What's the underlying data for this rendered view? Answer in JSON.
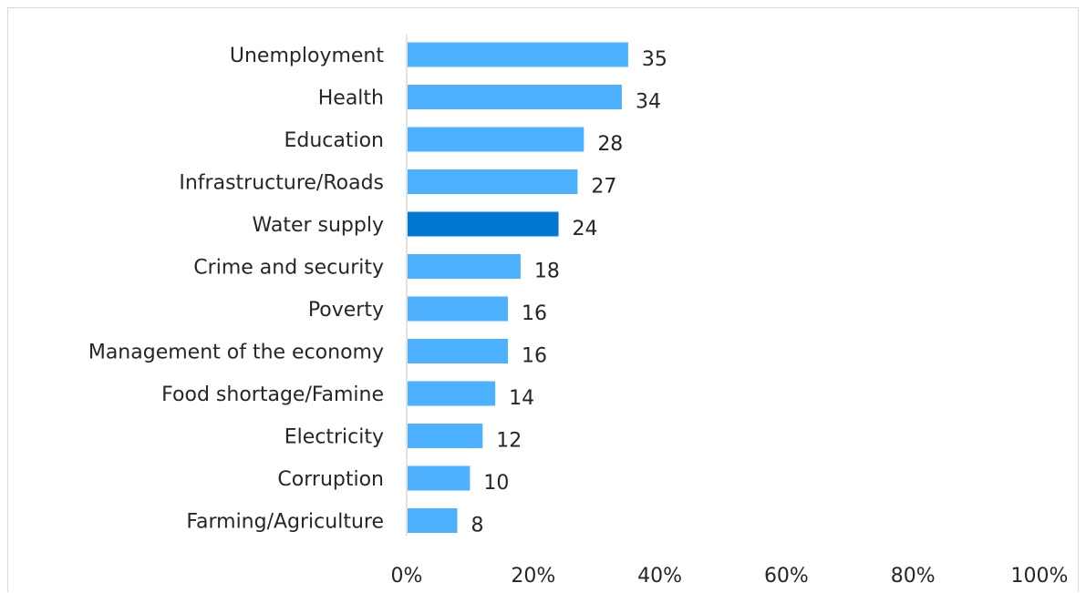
{
  "chart_data": {
    "type": "bar",
    "orientation": "horizontal",
    "categories": [
      "Unemployment",
      "Health",
      "Education",
      "Infrastructure/Roads",
      "Water supply",
      "Crime and security",
      "Poverty",
      "Management of the economy",
      "Food shortage/Famine",
      "Electricity",
      "Corruption",
      "Farming/Agriculture"
    ],
    "values": [
      35,
      34,
      28,
      27,
      24,
      18,
      16,
      16,
      14,
      12,
      10,
      8
    ],
    "value_labels": [
      "35",
      "34",
      "28",
      "27",
      "24",
      "18",
      "16",
      "16",
      "14",
      "12",
      "10",
      "8"
    ],
    "highlight_index": 4,
    "xlim": [
      0,
      100
    ],
    "xticks": [
      0,
      20,
      40,
      60,
      80,
      100
    ],
    "xtick_labels": [
      "0%",
      "20%",
      "40%",
      "60%",
      "80%",
      "100%"
    ],
    "title": "",
    "xlabel": "",
    "ylabel": "",
    "grid": false,
    "legend": "none",
    "colors": {
      "bar": "#4db1ff",
      "highlight": "#0078d4",
      "axis": "#d9d9d9",
      "text": "#262626"
    }
  }
}
